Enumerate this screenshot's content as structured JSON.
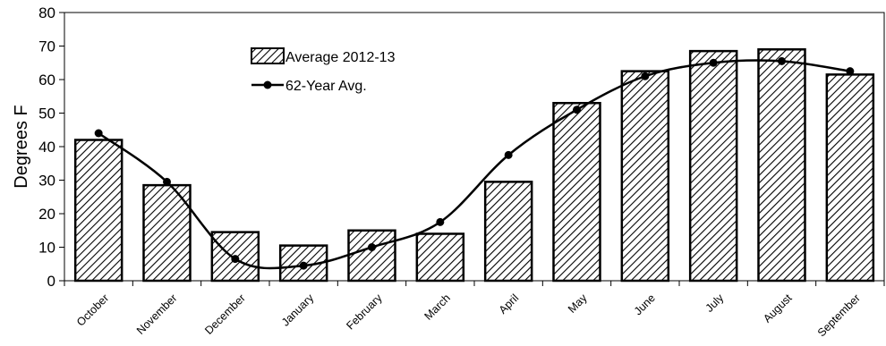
{
  "chart_data": {
    "type": "bar",
    "title": "",
    "xlabel": "",
    "ylabel": "Degrees F",
    "ylim": [
      0,
      80
    ],
    "yticks": [
      0,
      10,
      20,
      30,
      40,
      50,
      60,
      70,
      80
    ],
    "grid": false,
    "legend_position": "top-left",
    "categories": [
      "October",
      "November",
      "December",
      "January",
      "February",
      "March",
      "April",
      "May",
      "June",
      "July",
      "August",
      "September"
    ],
    "series": [
      {
        "name": "Average 2012-13",
        "type": "bar",
        "pattern": "diagonal-hatch",
        "values": [
          42,
          28.5,
          14.5,
          10.5,
          15,
          14,
          29.5,
          53,
          62.5,
          68.5,
          69,
          61.5
        ]
      },
      {
        "name": "62-Year Avg.",
        "type": "line",
        "marker": "circle",
        "values": [
          44,
          29.5,
          6.5,
          4.5,
          10,
          17.5,
          37.5,
          51,
          61,
          65,
          65.5,
          62.5
        ]
      }
    ]
  }
}
